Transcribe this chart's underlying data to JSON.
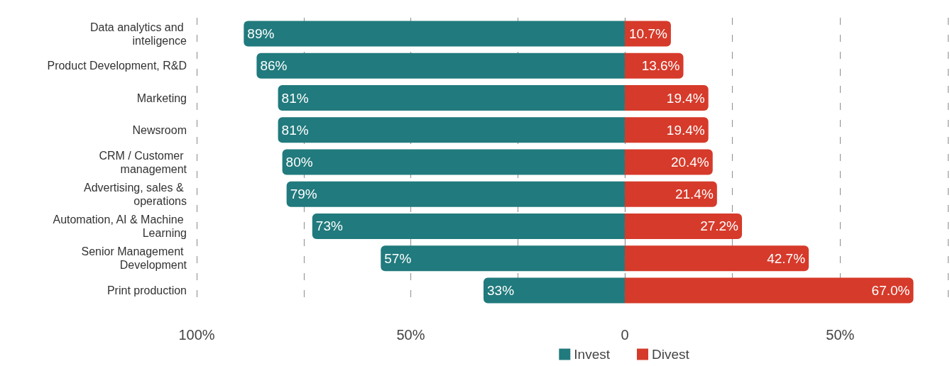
{
  "chart_data": [
    {
      "type": "bar",
      "orientation": "horizontal",
      "categories": [
        "Data analytics and inteligence",
        "Product Development, R&D",
        "Marketing",
        "Newsroom",
        "CRM / Customer management",
        "Advertising, sales & operations",
        "Automation, AI & Machine Learning",
        "Senior Management Development",
        "Print production"
      ],
      "series": [
        {
          "name": "Invest",
          "color": "#217a7d",
          "values": [
            89,
            86,
            81,
            81,
            80,
            79,
            73,
            57,
            33
          ],
          "value_labels": [
            "89%",
            "86%",
            "81%",
            "81%",
            "80%",
            "79%",
            "73%",
            "57%",
            "33%"
          ]
        }
      ],
      "xlim": [
        100,
        0
      ],
      "xticks": [
        {
          "value": 100,
          "label": "100%"
        },
        {
          "value": 75,
          "label": null
        },
        {
          "value": 50,
          "label": "50%"
        },
        {
          "value": 25,
          "label": null
        },
        0
      ],
      "grid": "x",
      "legend": "bottom right"
    },
    {
      "type": "bar",
      "orientation": "horizontal",
      "categories": [
        "Data analytics and inteligence",
        "Product Development, R&D",
        "Marketing",
        "Newsroom",
        "CRM / Customer management",
        "Advertising, sales & operations",
        "Automation, AI & Machine Learning",
        "Senior Management Development",
        "Print production"
      ],
      "series": [
        {
          "name": "Divest",
          "color": "#d63a2a",
          "values": [
            10.7,
            13.6,
            19.4,
            19.4,
            20.4,
            21.4,
            27.2,
            42.7,
            67.0
          ],
          "value_labels": [
            "10.7%",
            "13.6%",
            "19.4%",
            "19.4%",
            "20.4%",
            "21.4%",
            "27.2%",
            "42.7%",
            "67.0%"
          ]
        }
      ],
      "xlim": [
        0,
        75
      ],
      "xticks": [
        {
          "value": 0,
          "label": null
        },
        {
          "value": 25,
          "label": null
        },
        {
          "value": 50,
          "label": "50%"
        },
        {
          "value": 75,
          "label": null
        }
      ],
      "grid": "x",
      "legend": "bottom left",
      "tick_labels": "x"
    }
  ]
}
